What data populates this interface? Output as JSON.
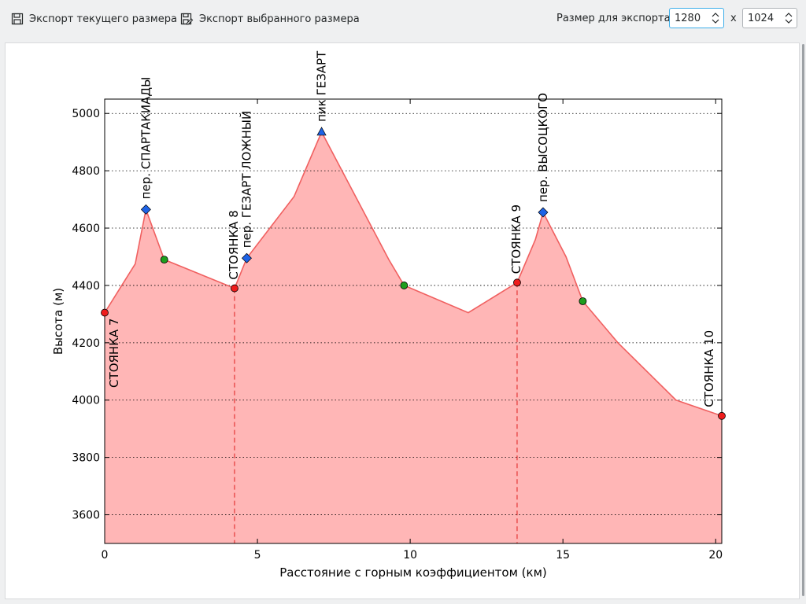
{
  "toolbar": {
    "export_current_label": "Экспорт текущего размера",
    "export_selected_label": "Экспорт выбранного размера",
    "size_label": "Размер для экспорта:",
    "width_value": "1280",
    "height_value": "1024",
    "times_sign": "x"
  },
  "icons": {
    "export_current": "save-icon",
    "export_selected": "save-as-icon"
  },
  "colors": {
    "fill": "#ffb6b6",
    "line": "#f06060",
    "camp": "#ee1c1c",
    "pass": "#1e63e6",
    "waypoint": "#1e9e1e",
    "focus": "#3daee9"
  },
  "chart_data": {
    "type": "area",
    "xlabel": "Расстояние с горным коэффициентом (км)",
    "ylabel": "Высота (м)",
    "xlim": [
      0,
      20.2
    ],
    "ylim": [
      3500,
      5050
    ],
    "xticks": [
      0,
      5,
      10,
      15,
      20
    ],
    "yticks": [
      3600,
      3800,
      4000,
      4200,
      4400,
      4600,
      4800,
      5000
    ],
    "grid": "horizontal dotted",
    "profile": {
      "x": [
        0,
        1.0,
        1.35,
        1.95,
        4.25,
        4.65,
        6.2,
        7.1,
        9.3,
        9.8,
        11.9,
        13.5,
        14.1,
        14.35,
        15.1,
        15.65,
        16.8,
        18.7,
        20.2
      ],
      "y": [
        4305,
        4475,
        4665,
        4490,
        4390,
        4495,
        4710,
        4935,
        4490,
        4400,
        4305,
        4410,
        4560,
        4655,
        4500,
        4345,
        4200,
        4000,
        3945
      ]
    },
    "camps": [
      {
        "x": 0,
        "y": 4305,
        "label": "СТОЯНКА 7"
      },
      {
        "x": 4.25,
        "y": 4390,
        "label": "СТОЯНКА 8"
      },
      {
        "x": 13.5,
        "y": 4410,
        "label": "СТОЯНКА 9"
      },
      {
        "x": 20.2,
        "y": 3945,
        "label": "СТОЯНКА 10"
      }
    ],
    "camp_dividers": [
      4.25,
      13.5
    ],
    "passes": [
      {
        "x": 1.35,
        "y": 4665,
        "label": "пер. СПАРТАКИАДЫ",
        "marker": "diamond"
      },
      {
        "x": 4.65,
        "y": 4495,
        "label": "пер. ГЕЗАРТ ЛОЖНЫЙ",
        "marker": "diamond"
      },
      {
        "x": 7.1,
        "y": 4935,
        "label": "пик ГЕЗАРТ",
        "marker": "triangle"
      },
      {
        "x": 14.35,
        "y": 4655,
        "label": "пер. ВЫСОЦКОГО",
        "marker": "diamond"
      }
    ],
    "waypoints": [
      {
        "x": 1.95,
        "y": 4490
      },
      {
        "x": 9.8,
        "y": 4400
      },
      {
        "x": 15.65,
        "y": 4345
      }
    ]
  }
}
